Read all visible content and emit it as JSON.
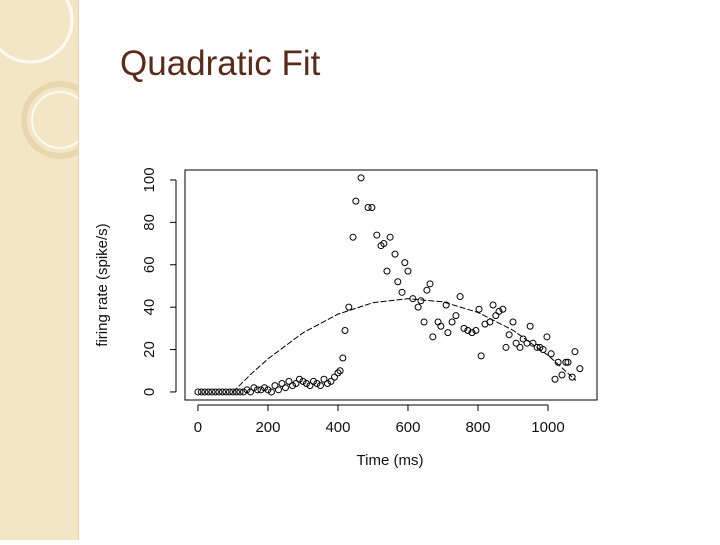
{
  "chart_data": {
    "type": "scatter",
    "title": "Quadratic Fit",
    "xlabel": "Time (ms)",
    "ylabel": "firing rate (spike/s)",
    "xlim": [
      -37,
      1140
    ],
    "ylim": [
      -3.8,
      104.7
    ],
    "xticks": [
      0,
      200,
      400,
      600,
      800,
      1000
    ],
    "yticks": [
      0,
      20,
      40,
      60,
      80,
      100
    ],
    "series": [
      {
        "kind": "points",
        "color": "#000000",
        "x": [
          0,
          10,
          20,
          30,
          40,
          50,
          60,
          70,
          80,
          90,
          100,
          110,
          120,
          130,
          140,
          150,
          160,
          170,
          180,
          190,
          200,
          210,
          220,
          230,
          240,
          250,
          260,
          270,
          280,
          290,
          300,
          310,
          320,
          330,
          340,
          350,
          360,
          370,
          380,
          390,
          400,
          406,
          414,
          420,
          431,
          443,
          451,
          466,
          486,
          497,
          511,
          523,
          531,
          549,
          540,
          563,
          571,
          591,
          600,
          583,
          614,
          629,
          637,
          654,
          663,
          646,
          671,
          686,
          694,
          709,
          714,
          726,
          737,
          749,
          760,
          771,
          783,
          794,
          803,
          809,
          820,
          834,
          843,
          851,
          860,
          871,
          880,
          889,
          900,
          909,
          920,
          929,
          940,
          949,
          957,
          969,
          977,
          986,
          997,
          1009,
          1020,
          1029,
          1040,
          1051,
          1057,
          1069,
          1077,
          1091
        ],
        "values": [
          0,
          0,
          0,
          0,
          0,
          0,
          0,
          0,
          0,
          0,
          0,
          0,
          0,
          0,
          1,
          0,
          2,
          1,
          1,
          2,
          1,
          0,
          3,
          1,
          4,
          2,
          5,
          3,
          4,
          6,
          5,
          4,
          3,
          5,
          4,
          3,
          6,
          4,
          5,
          7,
          9,
          10,
          16,
          29,
          40,
          73,
          90,
          101,
          87,
          87,
          74,
          69,
          70,
          73,
          57,
          65,
          52,
          61,
          57,
          47,
          44,
          40,
          43,
          48,
          51,
          33,
          26,
          33,
          31,
          41,
          28,
          33,
          36,
          45,
          30,
          29,
          28,
          29,
          39,
          17,
          32,
          33,
          41,
          36,
          38,
          39,
          21,
          27,
          33,
          23,
          21,
          25,
          23,
          31,
          23,
          21,
          21,
          20,
          26,
          18,
          6,
          14,
          8,
          14,
          14,
          7,
          19,
          11
        ]
      },
      {
        "kind": "line",
        "color": "#000000",
        "x": [
          100,
          150,
          200,
          300,
          400,
          500,
          600,
          700,
          800,
          900,
          1000,
          1080
        ],
        "values": [
          0,
          8.2,
          15.6,
          27.9,
          36.7,
          42.1,
          44.0,
          42.5,
          37.5,
          29.1,
          17.3,
          5.4
        ]
      }
    ]
  }
}
